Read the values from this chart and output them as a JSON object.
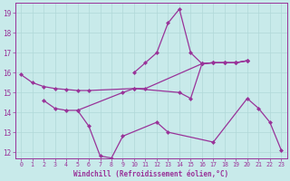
{
  "xlabel": "Windchill (Refroidissement éolien,°C)",
  "background_color": "#c8eaea",
  "grid_color": "#b0d8d8",
  "line_color": "#993399",
  "ylim": [
    11.7,
    19.5
  ],
  "xlim": [
    -0.5,
    23.5
  ],
  "yticks": [
    12,
    13,
    14,
    15,
    16,
    17,
    18,
    19
  ],
  "xticks": [
    0,
    1,
    2,
    3,
    4,
    5,
    6,
    7,
    8,
    9,
    10,
    11,
    12,
    13,
    14,
    15,
    16,
    17,
    18,
    19,
    20,
    21,
    22,
    23
  ],
  "line_A_x": [
    0,
    1,
    2,
    3,
    4,
    5,
    6,
    10,
    11,
    16,
    17,
    18,
    19,
    20
  ],
  "line_A_y": [
    15.9,
    15.5,
    15.3,
    15.2,
    15.15,
    15.1,
    15.1,
    15.2,
    15.2,
    16.45,
    16.5,
    16.5,
    16.5,
    16.6
  ],
  "line_B_x": [
    2,
    3,
    4,
    5,
    9,
    10,
    14,
    15,
    16,
    17,
    18,
    19,
    20
  ],
  "line_B_y": [
    14.6,
    14.2,
    14.1,
    14.1,
    15.0,
    15.2,
    15.0,
    14.7,
    16.45,
    16.5,
    16.5,
    16.5,
    16.6
  ],
  "line_C_x": [
    5,
    6,
    7,
    8,
    9,
    12,
    13,
    17,
    20,
    21,
    22,
    23
  ],
  "line_C_y": [
    14.1,
    13.3,
    11.8,
    11.7,
    12.8,
    13.5,
    13.0,
    12.5,
    14.7,
    14.2,
    13.5,
    12.1
  ],
  "line_D_x": [
    10,
    11,
    12,
    13,
    14,
    15,
    16,
    17,
    18,
    19,
    20
  ],
  "line_D_y": [
    16.0,
    16.5,
    17.0,
    18.5,
    19.2,
    17.0,
    16.45,
    16.5,
    16.5,
    16.5,
    16.6
  ]
}
